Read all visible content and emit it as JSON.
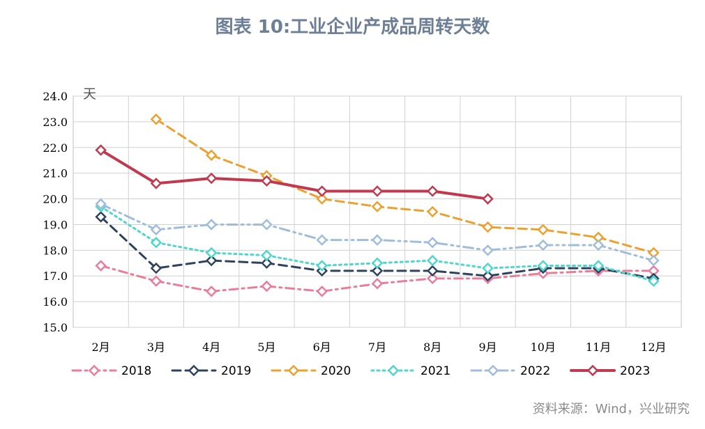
{
  "title": "图表 10:工业企业产成品周转天数",
  "source": "资料来源：Wind，兴业研究",
  "chart_data": {
    "type": "line",
    "ylabel": "天",
    "ylim": [
      15.0,
      24.0
    ],
    "yticks": [
      "15.0",
      "16.0",
      "17.0",
      "18.0",
      "19.0",
      "20.0",
      "21.0",
      "22.0",
      "23.0",
      "24.0"
    ],
    "categories": [
      "2月",
      "3月",
      "4月",
      "5月",
      "6月",
      "7月",
      "8月",
      "9月",
      "10月",
      "11月",
      "12月"
    ],
    "grid": true,
    "legend": "bottom",
    "series": [
      {
        "name": "2018",
        "color": "#e87d9a",
        "dash": "dashdot",
        "values": [
          17.4,
          16.8,
          16.4,
          16.6,
          16.4,
          16.7,
          16.9,
          16.9,
          17.1,
          17.2,
          17.2
        ]
      },
      {
        "name": "2019",
        "color": "#2e4260",
        "dash": "dash",
        "values": [
          19.3,
          17.3,
          17.6,
          17.5,
          17.2,
          17.2,
          17.2,
          17.0,
          17.3,
          17.3,
          16.9
        ]
      },
      {
        "name": "2020",
        "color": "#eba030",
        "dash": "dash",
        "values": [
          null,
          23.1,
          21.7,
          20.9,
          20.0,
          19.7,
          19.5,
          18.9,
          18.8,
          18.5,
          17.9
        ]
      },
      {
        "name": "2021",
        "color": "#4fd6cc",
        "dash": "dot",
        "values": [
          19.7,
          18.3,
          17.9,
          17.8,
          17.4,
          17.5,
          17.6,
          17.3,
          17.4,
          17.4,
          16.8
        ]
      },
      {
        "name": "2022",
        "color": "#9fbddb",
        "dash": "dashdotdot",
        "values": [
          19.8,
          18.8,
          19.0,
          19.0,
          18.4,
          18.4,
          18.3,
          18.0,
          18.2,
          18.2,
          17.6
        ]
      },
      {
        "name": "2023",
        "color": "#c0394f",
        "dash": "solid",
        "values": [
          21.9,
          20.6,
          20.8,
          20.7,
          20.3,
          20.3,
          20.3,
          20.0,
          null,
          null,
          null
        ]
      }
    ]
  }
}
